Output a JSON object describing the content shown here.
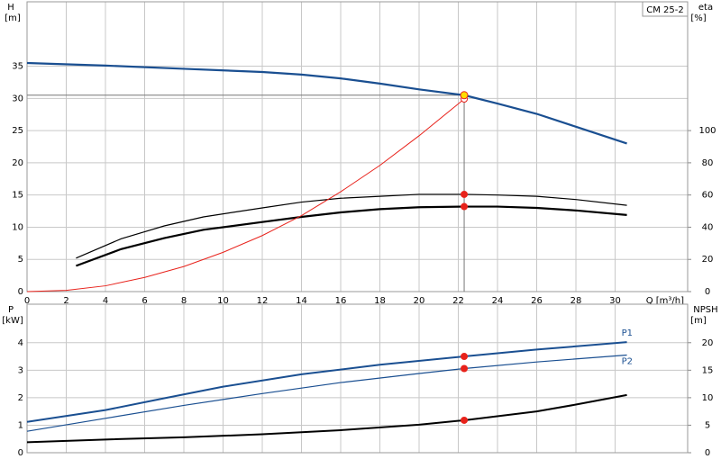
{
  "chart_data": [
    {
      "type": "line",
      "label": "CM 25-2",
      "xlabel": "Q [m³/h]",
      "ylabel": "H",
      "yunit": "[m]",
      "y2label": "eta",
      "y2unit": "[%]",
      "xlim": [
        0,
        33.7
      ],
      "xticks": [
        0,
        2,
        4,
        6,
        8,
        10,
        12,
        14,
        16,
        18,
        20,
        22,
        24,
        26,
        28,
        30
      ],
      "ylim": [
        0,
        45
      ],
      "yticks": [
        0,
        5,
        10,
        15,
        20,
        25,
        30,
        35
      ],
      "y2lim": [
        0,
        180
      ],
      "y2ticks": [
        0,
        20,
        40,
        60,
        80,
        100
      ],
      "grid": true,
      "duty_point": {
        "x": 22.3,
        "y": 30.5,
        "color": "#ffdd00"
      },
      "series": [
        {
          "color": "#1a4f91",
          "width": 2.2,
          "x": [
            0,
            4,
            8,
            12,
            14,
            16,
            18,
            20,
            22.3,
            24,
            26,
            28,
            30.6
          ],
          "values": [
            35.5,
            35.1,
            34.6,
            34.1,
            33.7,
            33.1,
            32.3,
            31.4,
            30.5,
            29.2,
            27.6,
            25.6,
            23
          ]
        },
        {
          "color": "#000000",
          "width": 1.2,
          "axis": "y2",
          "marker_color": "#e8221b",
          "x": [
            2.5,
            4.8,
            7,
            9,
            12,
            14,
            16,
            18,
            20,
            22.3,
            24,
            26,
            28,
            30.6
          ],
          "values": [
            20.8,
            32.8,
            40.8,
            46.4,
            52,
            55.6,
            58,
            59.2,
            60.4,
            60.4,
            60,
            59.2,
            57.2,
            53.6
          ]
        },
        {
          "color": "#000000",
          "width": 2.2,
          "axis": "y2",
          "marker_color": "#e8221b",
          "x": [
            2.5,
            4.8,
            7,
            9,
            12,
            14,
            16,
            18,
            20,
            22.3,
            24,
            26,
            28,
            30.6
          ],
          "values": [
            16,
            26.4,
            33.2,
            38.4,
            43.2,
            46.4,
            49.2,
            51.2,
            52.4,
            52.8,
            52.8,
            52,
            50.4,
            47.6
          ]
        },
        {
          "color": "#e8221b",
          "width": 1,
          "marker_color": "#ffffff",
          "x": [
            0,
            2,
            4,
            6,
            8,
            10,
            12,
            14,
            16,
            18,
            20,
            22.3
          ],
          "values": [
            0,
            0.2,
            0.9,
            2.2,
            3.9,
            6.1,
            8.7,
            11.8,
            15.5,
            19.6,
            24.2,
            29.9
          ]
        }
      ]
    },
    {
      "type": "line",
      "ylabel": "P",
      "yunit": "[kW]",
      "y2label": "NPSH",
      "y2unit": "[m]",
      "xlim": [
        0,
        33.7
      ],
      "xgrid": [
        0,
        2,
        4,
        6,
        8,
        10,
        12,
        14,
        16,
        18,
        20,
        22,
        24,
        26,
        28,
        30
      ],
      "ylim": [
        0,
        5.4
      ],
      "yticks": [
        0,
        1,
        2,
        3,
        4
      ],
      "y2lim": [
        0,
        27
      ],
      "y2ticks": [
        0,
        5,
        10,
        15,
        20
      ],
      "grid": true,
      "series": [
        {
          "name": "P1",
          "color": "#1a4f91",
          "width": 2,
          "marker_color": "#e8221b",
          "x": [
            0,
            4,
            7,
            10,
            14,
            18,
            22.3,
            26,
            30.6
          ],
          "values": [
            1.12,
            1.55,
            1.98,
            2.4,
            2.85,
            3.2,
            3.5,
            3.75,
            4.02
          ]
        },
        {
          "name": "P2",
          "color": "#1a4f91",
          "width": 1.2,
          "marker_color": "#e8221b",
          "x": [
            0,
            4,
            8,
            12,
            16,
            20,
            22.3,
            26,
            30.6
          ],
          "values": [
            0.78,
            1.25,
            1.72,
            2.15,
            2.55,
            2.88,
            3.06,
            3.3,
            3.55
          ]
        },
        {
          "color": "#000000",
          "width": 2,
          "axis": "y2",
          "marker_color": "#e8221b",
          "x": [
            0,
            4,
            8,
            12,
            16,
            20,
            22.3,
            26,
            28,
            30.6
          ],
          "values": [
            1.9,
            2.4,
            2.8,
            3.35,
            4.1,
            5.1,
            5.9,
            7.5,
            8.75,
            10.5
          ]
        }
      ]
    }
  ]
}
